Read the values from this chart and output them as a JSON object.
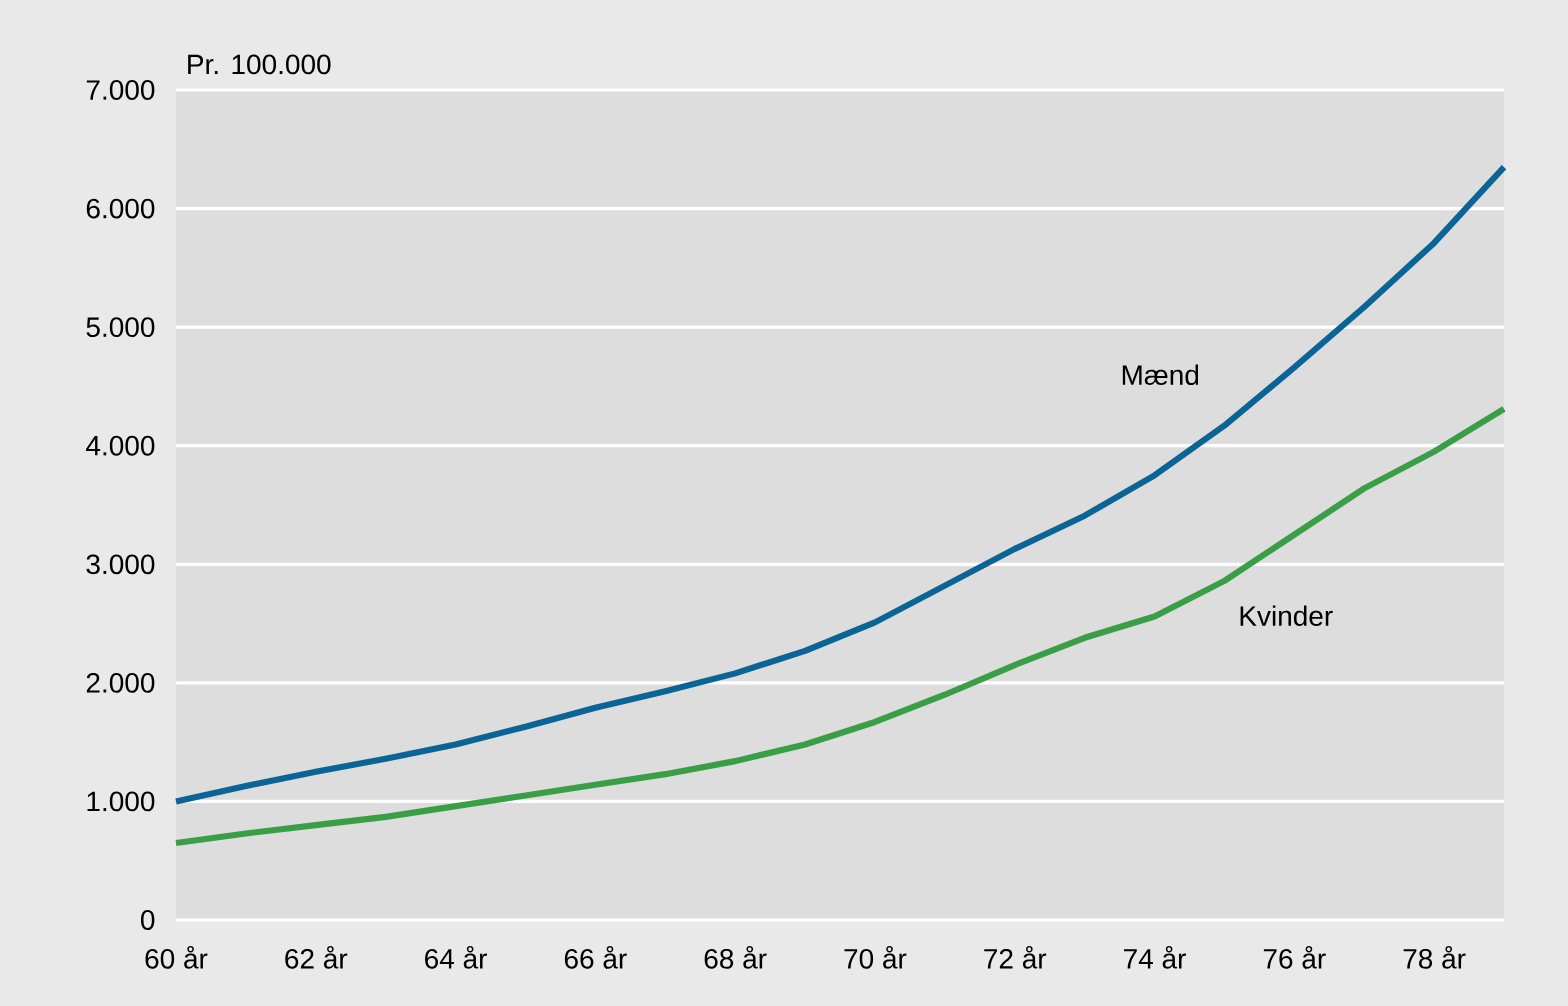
{
  "chart_data": {
    "type": "line",
    "ylabel": "Pr. 100.000",
    "x": [
      60,
      61,
      62,
      63,
      64,
      65,
      66,
      67,
      68,
      69,
      70,
      71,
      72,
      73,
      74,
      75,
      76,
      77,
      78,
      79
    ],
    "xlim": [
      60,
      79
    ],
    "xticks": [
      {
        "value": 60,
        "label": "60 år"
      },
      {
        "value": 62,
        "label": "62 år"
      },
      {
        "value": 64,
        "label": "64 år"
      },
      {
        "value": 66,
        "label": "66 år"
      },
      {
        "value": 68,
        "label": "68 år"
      },
      {
        "value": 70,
        "label": "70 år"
      },
      {
        "value": 72,
        "label": "72 år"
      },
      {
        "value": 74,
        "label": "74 år"
      },
      {
        "value": 76,
        "label": "76 år"
      },
      {
        "value": 78,
        "label": "78 år"
      }
    ],
    "ylim": [
      0,
      7000
    ],
    "yticks": [
      {
        "value": 0,
        "label": "0"
      },
      {
        "value": 1000,
        "label": "1.000"
      },
      {
        "value": 2000,
        "label": "2.000"
      },
      {
        "value": 3000,
        "label": "3.000"
      },
      {
        "value": 4000,
        "label": "4.000"
      },
      {
        "value": 5000,
        "label": "5.000"
      },
      {
        "value": 6000,
        "label": "6.000"
      },
      {
        "value": 7000,
        "label": "7.000"
      }
    ],
    "grid": "y",
    "series": [
      {
        "name": "Mænd",
        "color": "#0a6496",
        "values": [
          1000,
          1130,
          1250,
          1360,
          1480,
          1630,
          1790,
          1930,
          2080,
          2270,
          2510,
          2820,
          3130,
          3410,
          3750,
          4170,
          4660,
          5170,
          5710,
          6350
        ]
      },
      {
        "name": "Kvinder",
        "color": "#3a9e47",
        "values": [
          650,
          730,
          800,
          870,
          960,
          1050,
          1140,
          1230,
          1340,
          1480,
          1670,
          1900,
          2150,
          2380,
          2560,
          2860,
          3250,
          3640,
          3950,
          4310
        ]
      }
    ]
  }
}
